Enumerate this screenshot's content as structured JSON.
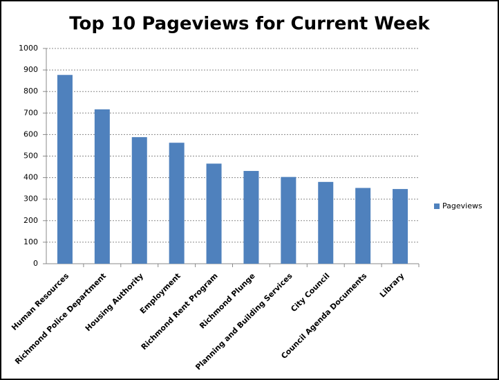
{
  "chart_data": {
    "type": "bar",
    "title": "Top 10 Pageviews for Current Week",
    "categories": [
      "Human Resources",
      "Richmond Police Department",
      "Housing Authority",
      "Employment",
      "Richmond Rent Program",
      "Richmond Plunge",
      "Planning and Building Services",
      "City Council",
      "Council Agenda Documents",
      "Library"
    ],
    "series": [
      {
        "name": "Pageviews",
        "color": "#4f81bd",
        "values": [
          877,
          717,
          588,
          562,
          465,
          431,
          403,
          380,
          352,
          347
        ]
      }
    ],
    "ylim": [
      0,
      1000
    ],
    "yticks": [
      0,
      100,
      200,
      300,
      400,
      500,
      600,
      700,
      800,
      900,
      1000
    ],
    "grid": true,
    "legend": "right"
  }
}
